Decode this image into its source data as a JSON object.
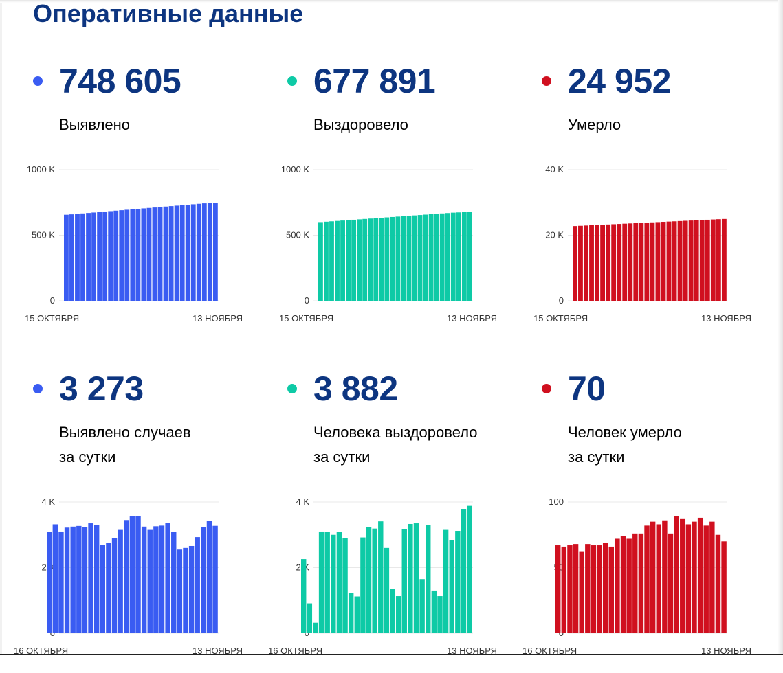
{
  "title": "Оперативные данные",
  "colors": {
    "blue": "#3a5cf2",
    "green": "#0ecaa6",
    "red": "#d0101f",
    "title": "#0d3580"
  },
  "blocks": [
    {
      "value": "748 605",
      "label1": "Выявлено",
      "label2": "",
      "color": "#3a5cf2"
    },
    {
      "value": "677 891",
      "label1": "Выздоровело",
      "label2": "",
      "color": "#0ecaa6"
    },
    {
      "value": "24 952",
      "label1": "Умерло",
      "label2": "",
      "color": "#d0101f"
    },
    {
      "value": "3 273",
      "label1": "Выявлено случаев",
      "label2": "за сутки",
      "color": "#3a5cf2"
    },
    {
      "value": "3 882",
      "label1": "Человека выздоровело",
      "label2": "за сутки",
      "color": "#0ecaa6"
    },
    {
      "value": "70",
      "label1": "Человек умерло",
      "label2": "за сутки",
      "color": "#d0101f"
    }
  ],
  "chart_data": [
    {
      "type": "bar",
      "color": "#3a5cf2",
      "ylim": [
        0,
        1000000
      ],
      "yticks": [
        0,
        500000,
        1000000
      ],
      "yticklabels": [
        "0",
        "500 K",
        "1000 K"
      ],
      "xlabel_start": "15 ОКТЯБРЯ",
      "xlabel_end": "13 НОЯБРЯ",
      "values": [
        656000,
        659000,
        662500,
        666000,
        669500,
        673000,
        676500,
        680000,
        683500,
        687000,
        690500,
        694000,
        697500,
        701000,
        704500,
        708000,
        711500,
        715000,
        718500,
        722000,
        725500,
        729000,
        732500,
        736000,
        739500,
        743000,
        745400,
        748605
      ]
    },
    {
      "type": "bar",
      "color": "#0ecaa6",
      "ylim": [
        0,
        1000000
      ],
      "yticks": [
        0,
        500000,
        1000000
      ],
      "yticklabels": [
        "0",
        "500 K",
        "1000 K"
      ],
      "xlabel_start": "15 ОКТЯБРЯ",
      "xlabel_end": "13 НОЯБРЯ",
      "values": [
        600000,
        603000,
        606000,
        609000,
        612000,
        615000,
        618000,
        621000,
        624000,
        627000,
        630000,
        633000,
        636000,
        639000,
        642000,
        645000,
        648000,
        651000,
        654000,
        657000,
        660000,
        663000,
        666000,
        669000,
        672000,
        674000,
        676000,
        677891
      ]
    },
    {
      "type": "bar",
      "color": "#d0101f",
      "ylim": [
        0,
        40000
      ],
      "yticks": [
        0,
        20000,
        40000
      ],
      "yticklabels": [
        "0",
        "20 K",
        "40 K"
      ],
      "xlabel_start": "15 ОКТЯБРЯ",
      "xlabel_end": "13 НОЯБРЯ",
      "values": [
        22800,
        22880,
        22960,
        23040,
        23120,
        23200,
        23280,
        23360,
        23440,
        23520,
        23600,
        23680,
        23760,
        23840,
        23920,
        24000,
        24080,
        24160,
        24240,
        24320,
        24400,
        24480,
        24560,
        24640,
        24720,
        24800,
        24882,
        24952
      ]
    },
    {
      "type": "bar",
      "color": "#3a5cf2",
      "ylim": [
        0,
        4000
      ],
      "yticks": [
        0,
        2000,
        4000
      ],
      "yticklabels": [
        "0",
        "2 K",
        "4 K"
      ],
      "xlabel_start": "16 ОКТЯБРЯ",
      "xlabel_end": "13 НОЯБРЯ",
      "values": [
        3080,
        3320,
        3100,
        3220,
        3250,
        3270,
        3240,
        3350,
        3300,
        2700,
        2750,
        2900,
        3150,
        3450,
        3560,
        3580,
        3250,
        3150,
        3260,
        3280,
        3360,
        3080,
        2550,
        2600,
        2660,
        2930,
        3230,
        3430,
        3273
      ]
    },
    {
      "type": "bar",
      "color": "#0ecaa6",
      "ylim": [
        0,
        4000
      ],
      "yticks": [
        0,
        2000,
        4000
      ],
      "yticklabels": [
        "0",
        "2 K",
        "4 K"
      ],
      "xlabel_start": "16 ОКТЯБРЯ",
      "xlabel_end": "13 НОЯБРЯ",
      "values": [
        2260,
        910,
        320,
        3100,
        3080,
        3000,
        3090,
        2900,
        1230,
        1120,
        2920,
        3240,
        3190,
        3410,
        2600,
        1340,
        1130,
        3170,
        3330,
        3350,
        1650,
        3300,
        1300,
        1130,
        3150,
        2840,
        3120,
        3790,
        3882
      ]
    },
    {
      "type": "bar",
      "color": "#d0101f",
      "ylim": [
        0,
        100
      ],
      "yticks": [
        0,
        50,
        100
      ],
      "yticklabels": [
        "0",
        "50",
        "100"
      ],
      "xlabel_start": "16 ОКТЯБРЯ",
      "xlabel_end": "13 НОЯБРЯ",
      "values": [
        67,
        66,
        67,
        68,
        62,
        68,
        67,
        67,
        69,
        66,
        72,
        74,
        72,
        76,
        76,
        82,
        85,
        83,
        86,
        76,
        89,
        87,
        83,
        85,
        88,
        82,
        85,
        75,
        70
      ]
    }
  ]
}
